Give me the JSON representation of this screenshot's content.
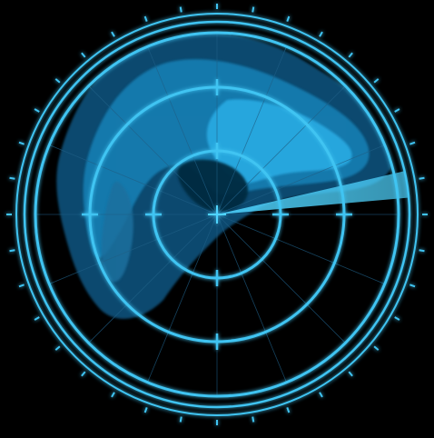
{
  "radar": {
    "colors": {
      "background": "#000000",
      "ring": "#3fc4f2",
      "ring_glow": "#1a8fd0",
      "echo_dark": "#0d4e74",
      "echo_mid": "#167fb3",
      "echo_bright": "#2aaee6",
      "sweep": "#4fd4ff",
      "grid_line": "#1f5f86"
    },
    "range_rings": 3,
    "radial_lines": 16,
    "sweep_heading_deg": 85,
    "sweep_width_deg": 8,
    "icons": [
      "radar-scope-icon",
      "sweep-beam-icon",
      "center-marker-icon"
    ]
  }
}
